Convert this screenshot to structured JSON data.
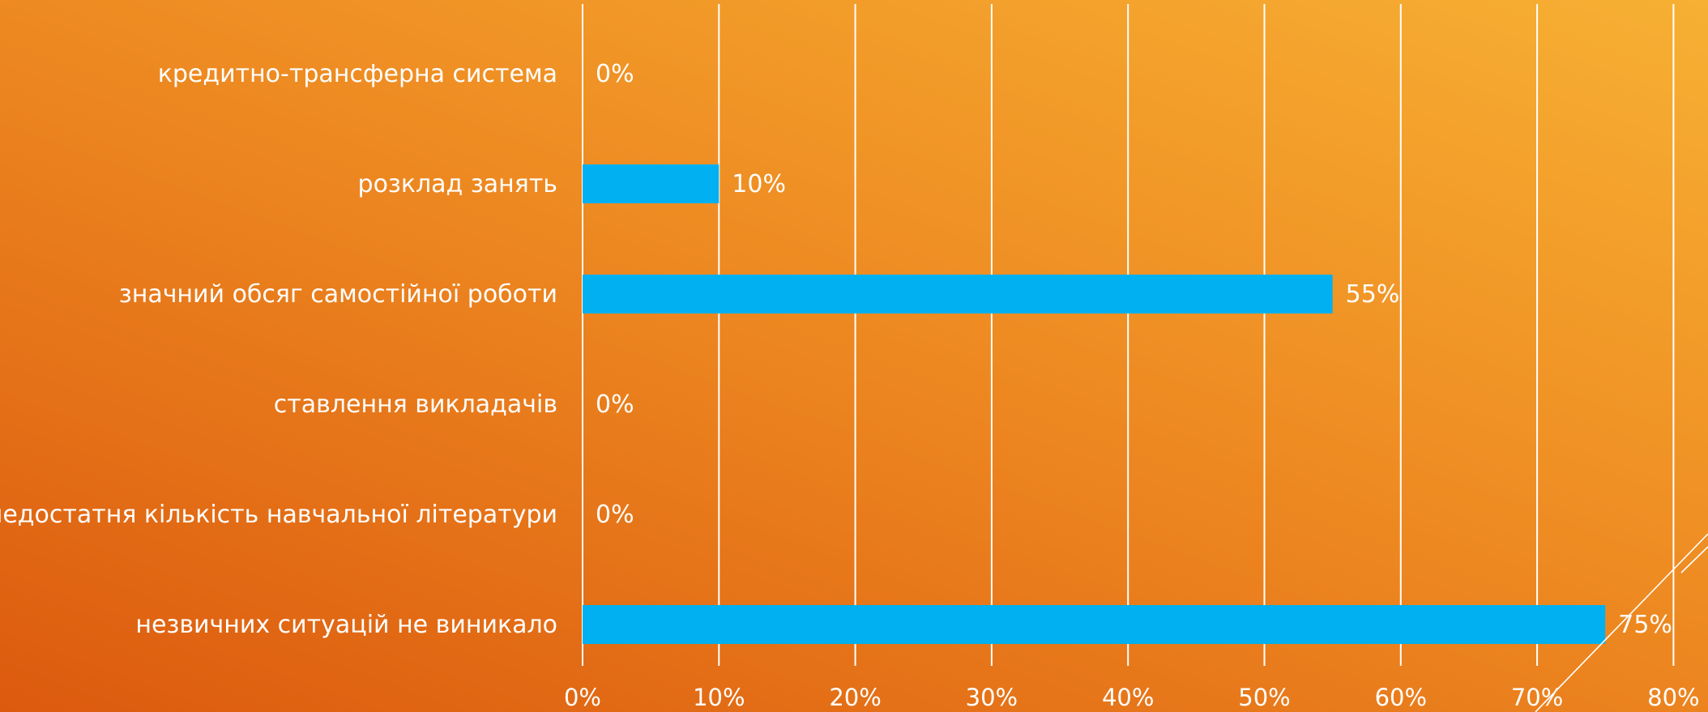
{
  "chart_data": {
    "type": "bar",
    "orientation": "horizontal",
    "categories": [
      "кредитно-трансферна система",
      "розклад занять",
      "значний обсяг самостійної роботи",
      "ставлення викладачів",
      "недостатня кількість навчальної літератури",
      "незвичних ситуацій не виникало"
    ],
    "values": [
      0,
      10,
      55,
      0,
      0,
      75
    ],
    "value_labels": [
      "0%",
      "10%",
      "55%",
      "0%",
      "0%",
      "75%"
    ],
    "x_ticks": [
      "0%",
      "10%",
      "20%",
      "30%",
      "40%",
      "50%",
      "60%",
      "70%",
      "80%"
    ],
    "xlim": [
      0,
      80
    ],
    "grid": true,
    "legend": "none",
    "title": "",
    "xlabel": "",
    "ylabel": ""
  },
  "colors": {
    "bar": "#00b0f0",
    "gridline": "#ffffff",
    "text": "#ffffff",
    "background_top": "#f7b033",
    "background_bottom": "#dc5a0e"
  }
}
